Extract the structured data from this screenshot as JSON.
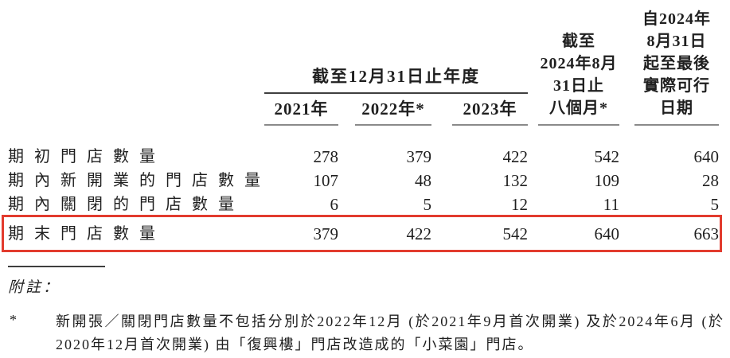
{
  "table": {
    "column_group_header": "截至12月31日止年度",
    "year_headers": [
      "2021年",
      "2022年*",
      "2023年"
    ],
    "period_header_eight_months": "截至\n2024年8月\n31日止\n八個月*",
    "period_header_latest_date": "自2024年\n8月31日\n起至最後\n實際可行\n日期",
    "rows": [
      {
        "label": "期初門店數量",
        "values": [
          "278",
          "379",
          "422",
          "542",
          "640"
        ]
      },
      {
        "label": "期內新開業的門店數量",
        "values": [
          "107",
          "48",
          "132",
          "109",
          "28"
        ]
      },
      {
        "label": "期內關閉的門店數量",
        "values": [
          "6",
          "5",
          "12",
          "11",
          "5"
        ]
      },
      {
        "label": "期末門店數量",
        "values": [
          "379",
          "422",
          "542",
          "640",
          "663"
        ],
        "highlighted": true
      }
    ],
    "highlight_color": "#e23b2e"
  },
  "notes": {
    "label": "附註：",
    "footnote_marker": "*",
    "footnote_text": "新開張／關閉門店數量不包括分別於2022年12月 (於2021年9月首次開業) 及於2024年6月 (於2020年12月首次開業) 由「復興樓」門店改造成的「小菜園」門店。"
  }
}
